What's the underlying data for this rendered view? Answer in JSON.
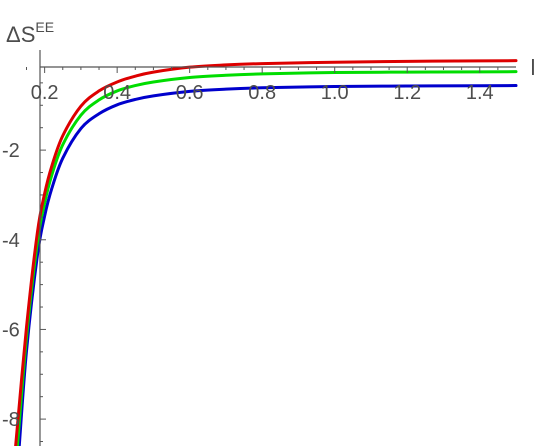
{
  "chart_data": {
    "type": "line",
    "ylabel_base": "ΔS",
    "ylabel_sup": "EE",
    "xlabel": "l",
    "xlim": [
      0.11,
      1.5
    ],
    "ylim": [
      -8.6,
      0.3
    ],
    "x_ticks": [
      0.2,
      0.4,
      0.6,
      0.8,
      1.0,
      1.2,
      1.4
    ],
    "x_tick_labels": [
      "0.2",
      "0.4",
      "0.6",
      "0.8",
      "1.0",
      "1.2",
      "1.4"
    ],
    "y_ticks": [
      -2,
      -4,
      -6,
      -8
    ],
    "y_tick_labels": [
      "-2",
      "-4",
      "-6",
      "-8"
    ],
    "grid": false,
    "series": [
      {
        "color": "#0000cc",
        "x": [
          0.13,
          0.15,
          0.18,
          0.2,
          0.22,
          0.25,
          0.3,
          0.35,
          0.4,
          0.45,
          0.5,
          0.6,
          0.7,
          0.8,
          1.0,
          1.2,
          1.4,
          1.5
        ],
        "y": [
          -8.6,
          -6.48,
          -4.35,
          -3.47,
          -2.85,
          -2.18,
          -1.52,
          -1.19,
          -0.99,
          -0.87,
          -0.79,
          -0.69,
          -0.64,
          -0.61,
          -0.58,
          -0.57,
          -0.565,
          -0.56
        ]
      },
      {
        "color": "#00dd00",
        "x": [
          0.125,
          0.15,
          0.18,
          0.2,
          0.22,
          0.25,
          0.3,
          0.35,
          0.4,
          0.45,
          0.5,
          0.6,
          0.7,
          0.8,
          1.0,
          1.2,
          1.4,
          1.5
        ],
        "y": [
          -8.6,
          -6.18,
          -4.06,
          -3.18,
          -2.55,
          -1.88,
          -1.22,
          -0.88,
          -0.68,
          -0.56,
          -0.48,
          -0.38,
          -0.33,
          -0.3,
          -0.27,
          -0.26,
          -0.255,
          -0.25
        ]
      },
      {
        "color": "#dd0000",
        "x": [
          0.12,
          0.15,
          0.18,
          0.2,
          0.22,
          0.25,
          0.3,
          0.35,
          0.4,
          0.45,
          0.5,
          0.6,
          0.7,
          0.8,
          1.0,
          1.2,
          1.4,
          1.5
        ],
        "y": [
          -8.6,
          -5.95,
          -3.84,
          -2.97,
          -2.35,
          -1.68,
          -1.02,
          -0.68,
          -0.48,
          -0.35,
          -0.26,
          -0.15,
          -0.1,
          -0.07,
          -0.04,
          -0.02,
          -0.01,
          -0.005
        ]
      }
    ]
  }
}
